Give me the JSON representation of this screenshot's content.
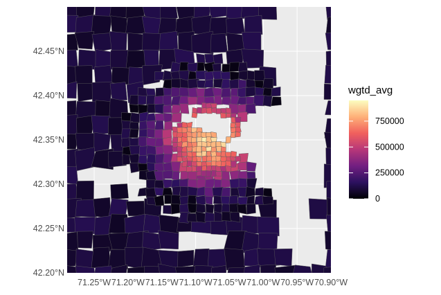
{
  "chart_data": {
    "type": "choropleth",
    "title": "",
    "xlabel": "",
    "ylabel": "",
    "x_ticks": [
      "71.25°W",
      "71.20°W",
      "71.15°W",
      "71.10°W",
      "71.05°W",
      "71.00°W",
      "70.95°W",
      "70.90°W"
    ],
    "x_tick_values": [
      -71.25,
      -71.2,
      -71.15,
      -71.1,
      -71.05,
      -71.0,
      -70.95,
      -70.9
    ],
    "y_ticks": [
      "42.45°N",
      "42.40°N",
      "42.35°N",
      "42.30°N",
      "42.25°N",
      "42.20°N"
    ],
    "y_tick_values": [
      42.45,
      42.4,
      42.35,
      42.3,
      42.25,
      42.2
    ],
    "xlim": [
      -71.29,
      -70.9
    ],
    "ylim": [
      42.2,
      42.5
    ],
    "background_color": "#ebebeb",
    "grid": true,
    "legend": {
      "title": "wgtd_avg",
      "placement": "right",
      "breaks": [
        0,
        250000,
        500000,
        750000
      ],
      "labels": [
        "0",
        "250000",
        "500000",
        "750000"
      ],
      "range": [
        0,
        950000
      ],
      "palette": [
        "#000004",
        "#2c115f",
        "#721f81",
        "#b73779",
        "#f1605d",
        "#feb078",
        "#fcfdbf"
      ]
    },
    "high_value_center": {
      "lon": -71.08,
      "lat": 42.35
    }
  }
}
